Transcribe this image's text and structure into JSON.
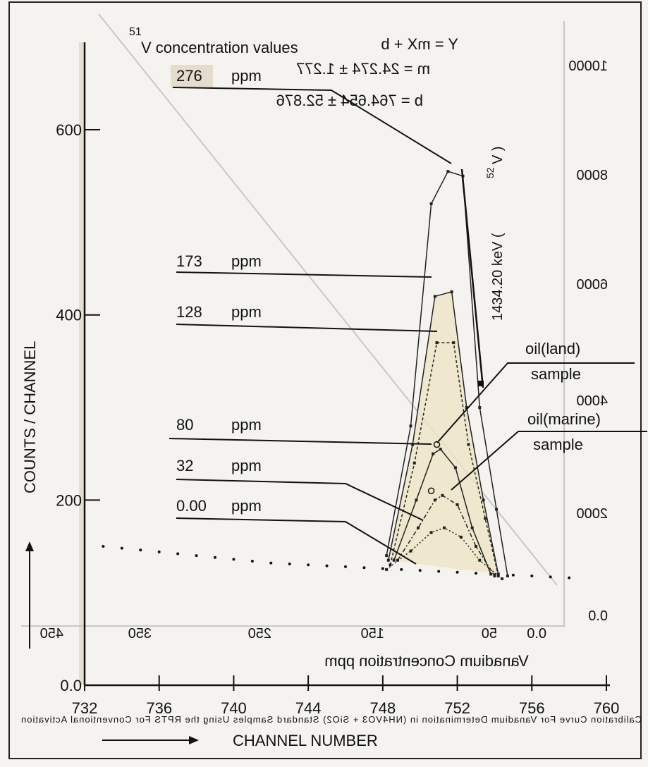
{
  "chart_data": {
    "type": "line",
    "title_superscript": "51",
    "title": "V concentration values",
    "xlabel": "CHANNEL NUMBER",
    "ylabel": "COUNTS / CHANNEL",
    "xlim": [
      732,
      760
    ],
    "ylim": [
      0,
      680
    ],
    "x_ticks": [
      732,
      736,
      740,
      744,
      748,
      752,
      756,
      760
    ],
    "x_tick_labels": [
      "732",
      "736",
      "740",
      "744",
      "748",
      "752",
      "756",
      "760"
    ],
    "y_ticks": [
      0,
      200,
      400,
      600
    ],
    "y_tick_labels": [
      "0.0",
      "200",
      "400",
      "600"
    ],
    "grid": false,
    "peak_label": "1434.20 keV (",
    "peak_label_superscript": "52",
    "peak_label_end": "V )",
    "series": [
      {
        "name": "276 ppm",
        "value_label": "276",
        "unit": "ppm",
        "x": [
          748.2,
          749.5,
          750.6,
          751.5,
          752.3,
          753.2,
          754.1,
          754.7
        ],
        "y": [
          140,
          280,
          520,
          555,
          550,
          300,
          190,
          118
        ]
      },
      {
        "name": "173 ppm",
        "value_label": "173",
        "unit": "ppm",
        "x": [
          748.3,
          749.6,
          750.8,
          751.7,
          752.5,
          753.4,
          754.2
        ],
        "y": [
          135,
          260,
          420,
          425,
          300,
          200,
          120
        ]
      },
      {
        "name": "128 ppm",
        "value_label": "128",
        "unit": "ppm",
        "x": [
          748.4,
          749.7,
          750.9,
          751.8,
          752.6,
          753.5,
          754.2
        ],
        "y": [
          130,
          240,
          370,
          370,
          260,
          180,
          118
        ]
      },
      {
        "name": "80 ppm",
        "value_label": "80",
        "unit": "ppm",
        "x": [
          748.6,
          749.8,
          750.7,
          751.1,
          751.9,
          752.8,
          753.8
        ],
        "y": [
          135,
          200,
          250,
          255,
          235,
          170,
          120
        ]
      },
      {
        "name": "32 ppm",
        "value_label": "32",
        "unit": "ppm",
        "x": [
          748.8,
          749.9,
          750.8,
          751.2,
          752.0,
          753.0,
          754.0
        ],
        "y": [
          135,
          170,
          200,
          205,
          195,
          150,
          118
        ]
      },
      {
        "name": "0.00 ppm",
        "value_label": "0.00",
        "unit": "ppm",
        "x": [
          748.2,
          749.5,
          750.6,
          751.3,
          752.2,
          753.2,
          754.4
        ],
        "y": [
          125,
          145,
          165,
          170,
          160,
          135,
          115
        ]
      }
    ],
    "samples": [
      {
        "label_line1": "oil(land)",
        "label_line2": "sample",
        "x": 750.9,
        "y": 260
      },
      {
        "label_line1": "oil(marine)",
        "label_line2": "sample",
        "x": 750.6,
        "y": 210
      }
    ],
    "background_points": {
      "x": [
        733,
        734,
        735,
        736,
        737,
        738,
        739,
        740,
        741,
        742,
        743,
        744,
        745,
        746,
        747,
        748,
        749,
        750,
        751,
        752,
        753,
        754,
        755,
        756,
        757,
        758
      ],
      "y": [
        150,
        148,
        146,
        144,
        142,
        140,
        138,
        136,
        134,
        132,
        131,
        130,
        129,
        128,
        127,
        126,
        125,
        124,
        123,
        122,
        121,
        120,
        119,
        118,
        117,
        116
      ]
    },
    "background_text": {
      "equation": "Y = mX + b",
      "m_line": "m = 24.274 ± 1.277",
      "b_line": "b = 764.654 ± 52.876",
      "x_ticks": [
        "450",
        "350",
        "250",
        "150",
        "50",
        "0.0"
      ],
      "y_ticks": [
        "10000",
        "8000",
        "6000",
        "4000",
        "2000",
        "0.0"
      ],
      "xlabel": "Vanadium Concentration ppm",
      "caption": "Calibration Curve For Vanadium Determination in (NH4VO3 + SiO2) Standard Samples Using the RPTS For Conventional Activation"
    }
  }
}
